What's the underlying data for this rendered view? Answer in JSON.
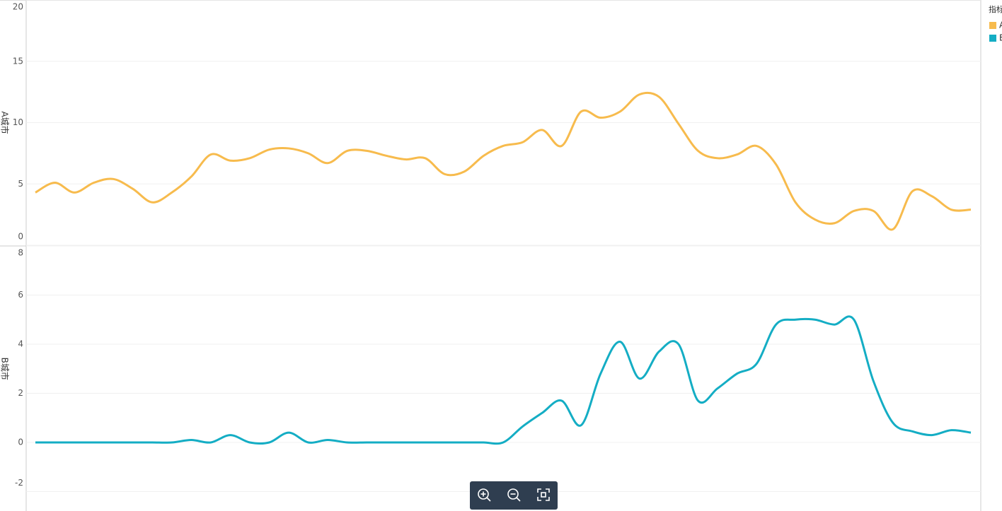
{
  "chart_data": [
    {
      "type": "line",
      "ylabel": "A城市",
      "legend_title": "指标",
      "ylim": [
        0,
        20
      ],
      "yticks": [
        0,
        5,
        10,
        15,
        20
      ],
      "grid": true,
      "series": [
        {
          "name": "A城市",
          "color": "#f7bb4d",
          "values": [
            4.3,
            5.1,
            4.3,
            5.1,
            5.4,
            4.6,
            3.5,
            4.3,
            5.6,
            7.4,
            6.9,
            7.1,
            7.8,
            7.9,
            7.5,
            6.7,
            7.7,
            7.7,
            7.3,
            7.0,
            7.1,
            5.8,
            6.0,
            7.3,
            8.1,
            8.4,
            9.4,
            8.1,
            10.9,
            10.4,
            10.9,
            12.3,
            12.1,
            9.9,
            7.7,
            7.1,
            7.4,
            8.1,
            6.6,
            3.5,
            2.1,
            1.8,
            2.8,
            2.8,
            1.3,
            4.4,
            4.0,
            2.9,
            2.9
          ]
        }
      ]
    },
    {
      "type": "line",
      "ylabel": "B城市",
      "ylim": [
        -2,
        8
      ],
      "yticks": [
        -2,
        0,
        2,
        4,
        6,
        8
      ],
      "grid": true,
      "series": [
        {
          "name": "B城市",
          "color": "#14adc4",
          "values": [
            0,
            0,
            0,
            0,
            0,
            0,
            0,
            0,
            0.1,
            0,
            0.3,
            0,
            0,
            0.4,
            0,
            0.1,
            0,
            0,
            0,
            0,
            0,
            0,
            0,
            0,
            0,
            0.65,
            1.2,
            1.7,
            0.7,
            2.8,
            4.1,
            2.6,
            3.7,
            4.0,
            1.7,
            2.2,
            2.8,
            3.2,
            4.8,
            5.0,
            5.0,
            4.8,
            5.0,
            2.5,
            0.8,
            0.45,
            0.3,
            0.5,
            0.4
          ]
        }
      ]
    }
  ]
}
